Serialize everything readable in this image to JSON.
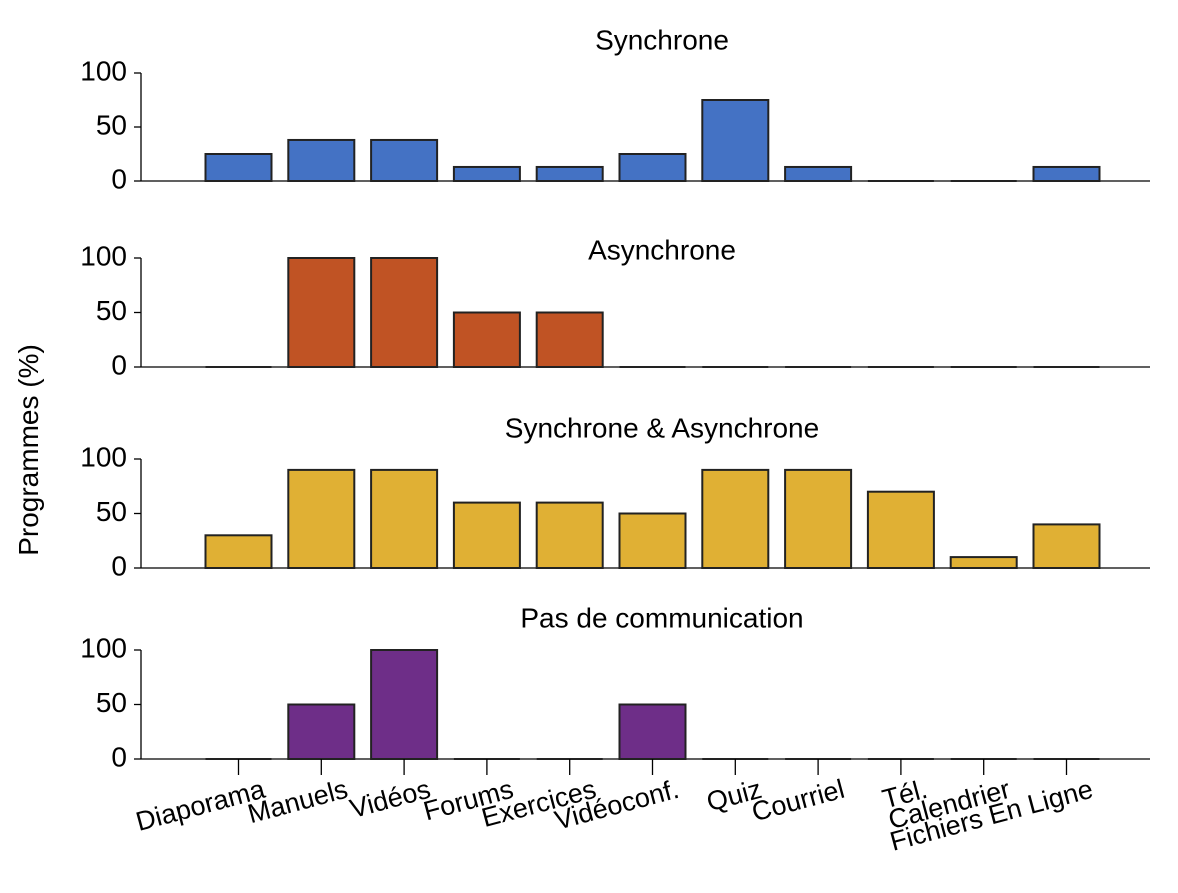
{
  "chart_data": {
    "type": "bar",
    "ylabel": "Programmes (%)",
    "ylim": [
      0,
      100
    ],
    "yticks": [
      0,
      50,
      100
    ],
    "categories": [
      "Diaporama",
      "Manuels",
      "Vidéos",
      "Forums",
      "Exercices",
      "Vidéoconf.",
      "Quiz",
      "Courriel",
      "Tél.",
      "Calendrier",
      "Fichiers En Ligne"
    ],
    "panels": [
      {
        "title": "Synchrone",
        "color": "#4472C4",
        "values": [
          25,
          38,
          38,
          13,
          13,
          25,
          75,
          13,
          0,
          0,
          13
        ]
      },
      {
        "title": "Asynchrone",
        "color": "#C05324",
        "values": [
          0,
          100,
          100,
          50,
          50,
          0,
          0,
          0,
          0,
          0,
          0
        ]
      },
      {
        "title": "Synchrone & Asynchrone",
        "color": "#E0B034",
        "values": [
          30,
          90,
          90,
          60,
          60,
          50,
          90,
          90,
          70,
          10,
          40
        ]
      },
      {
        "title": "Pas de communication",
        "color": "#6E2E88",
        "values": [
          0,
          50,
          100,
          0,
          0,
          50,
          0,
          0,
          0,
          0,
          0
        ]
      }
    ]
  }
}
